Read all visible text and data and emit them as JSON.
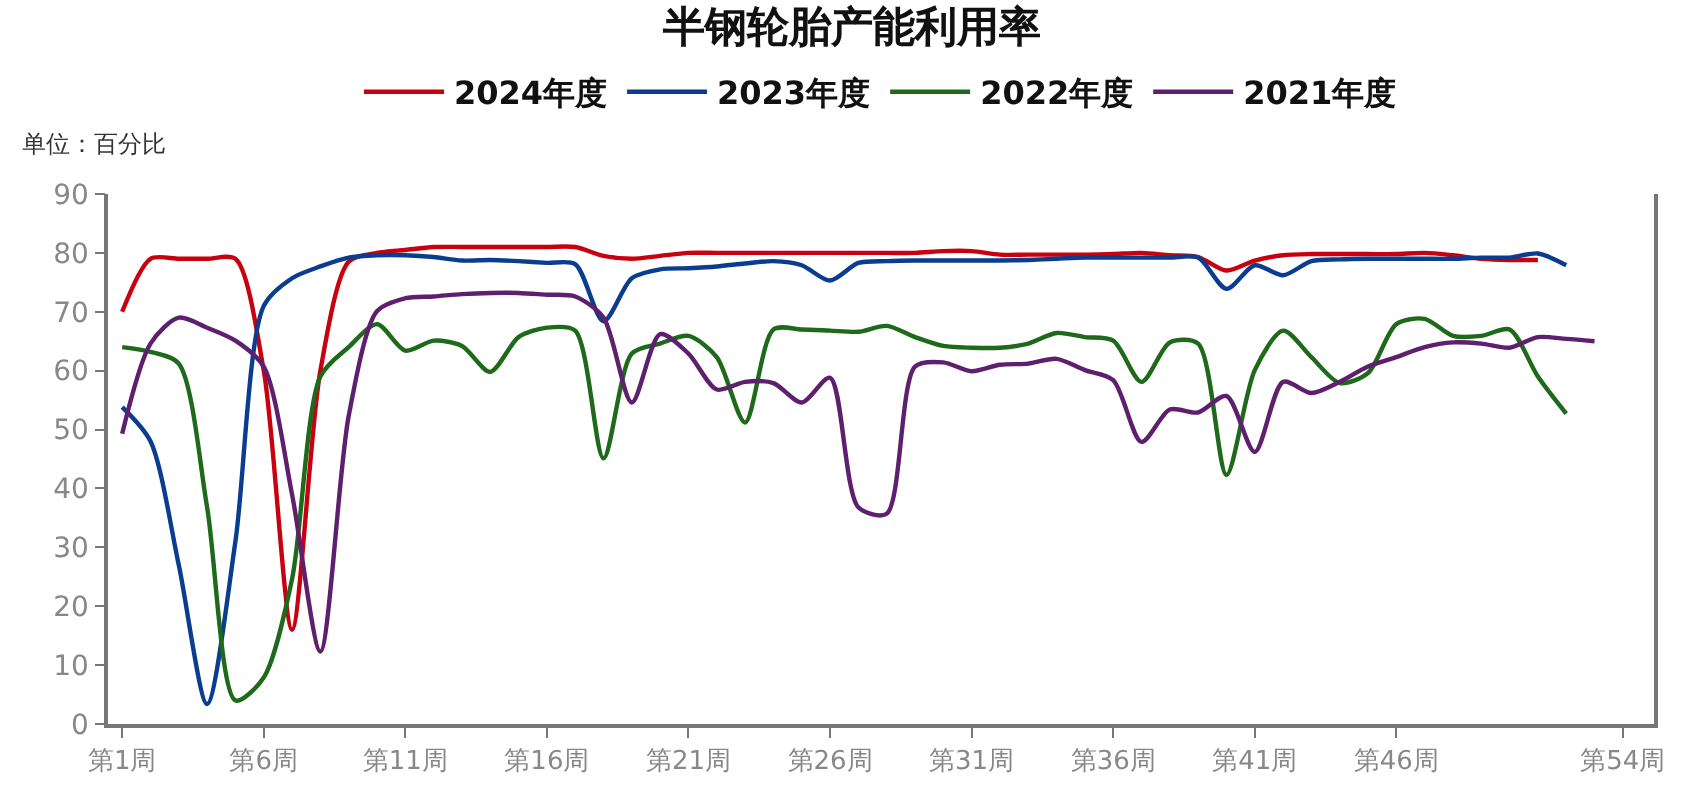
{
  "chart_data": {
    "type": "line",
    "title": "半钢轮胎产能利用率",
    "ylabel": "单位：百分比",
    "categories": [
      "第1周",
      null,
      null,
      null,
      null,
      "第6周",
      null,
      null,
      null,
      null,
      "第11周",
      null,
      null,
      null,
      null,
      "第16周",
      null,
      null,
      null,
      null,
      "第21周",
      null,
      null,
      null,
      null,
      "第26周",
      null,
      null,
      null,
      null,
      "第31周",
      null,
      null,
      null,
      null,
      "第36周",
      null,
      null,
      null,
      null,
      "第41周",
      null,
      null,
      null,
      null,
      "第46周",
      null,
      null,
      null,
      null,
      null,
      null,
      null,
      "第54周"
    ],
    "series": [
      {
        "name": "2024年度",
        "color": "#c8000f",
        "values": [
          70,
          79,
          79,
          79,
          79,
          60,
          16,
          60,
          78.5,
          80,
          80.5,
          81,
          81,
          81,
          81,
          81,
          81,
          79.5,
          79,
          79.5,
          80,
          80,
          80,
          80,
          80,
          80,
          80,
          80,
          80,
          80.3,
          80.3,
          79.7,
          79.7,
          79.7,
          79.7,
          79.8,
          80,
          79.6,
          79.3,
          77,
          78.7,
          79.6,
          79.8,
          79.8,
          79.8,
          79.8,
          80,
          79.6,
          79,
          78.8,
          78.8,
          null,
          null,
          null
        ]
      },
      {
        "name": "2023年度",
        "color": "#0a3d8f",
        "values": [
          53.8,
          48,
          27,
          3.4,
          31,
          71,
          75.7,
          77.7,
          79.2,
          79.6,
          79.6,
          79.3,
          78.7,
          78.8,
          78.6,
          78.3,
          78.1,
          68.4,
          75.7,
          77.2,
          77.4,
          77.7,
          78.2,
          78.6,
          77.9,
          75.3,
          78.3,
          78.6,
          78.7,
          78.7,
          78.7,
          78.7,
          78.8,
          79,
          79.2,
          79.2,
          79.2,
          79.2,
          79.2,
          73.9,
          77.9,
          76.2,
          78.6,
          78.9,
          79,
          79,
          79,
          79,
          79.2,
          79.2,
          79.9,
          77.9,
          null,
          null
        ]
      },
      {
        "name": "2022年度",
        "color": "#1e6a1a",
        "values": [
          64,
          63.2,
          61.2,
          36.8,
          4,
          7.9,
          24.6,
          59,
          64,
          67.9,
          63.4,
          65.1,
          64.2,
          59.8,
          65.7,
          67.3,
          66.8,
          45.1,
          62.9,
          64.6,
          65.9,
          62.3,
          51.2,
          67,
          67,
          66.8,
          66.6,
          67.6,
          65.7,
          64.2,
          63.9,
          63.9,
          64.6,
          66.4,
          65.7,
          65.1,
          58.1,
          64.8,
          64.6,
          42.3,
          60.1,
          66.8,
          62.3,
          57.9,
          59.6,
          67.9,
          68.8,
          65.9,
          65.9,
          67,
          59,
          52.7,
          null,
          null
        ]
      },
      {
        "name": "2021年度",
        "color": "#5e1f6e",
        "values": [
          49.3,
          64.6,
          69,
          67.3,
          65.1,
          60.7,
          39,
          12.3,
          52.3,
          70.1,
          72.3,
          72.6,
          73,
          73.2,
          73.2,
          72.9,
          72.6,
          69,
          54.6,
          66.2,
          62.9,
          56.8,
          58.1,
          57.9,
          54.6,
          58.8,
          36.8,
          35.7,
          60.7,
          61.4,
          59.9,
          61,
          61.2,
          62,
          60.1,
          58.4,
          47.9,
          53.4,
          52.9,
          55.7,
          46.2,
          58.1,
          56.2,
          58.1,
          60.7,
          62.3,
          64,
          64.8,
          64.6,
          63.9,
          65.7,
          65.4,
          65,
          null
        ]
      }
    ],
    "ylim": [
      0,
      90
    ],
    "yticks": [
      0,
      10,
      20,
      30,
      40,
      50,
      60,
      70,
      80,
      90
    ],
    "legend": "top",
    "marker": "none",
    "line_style": "solid"
  }
}
